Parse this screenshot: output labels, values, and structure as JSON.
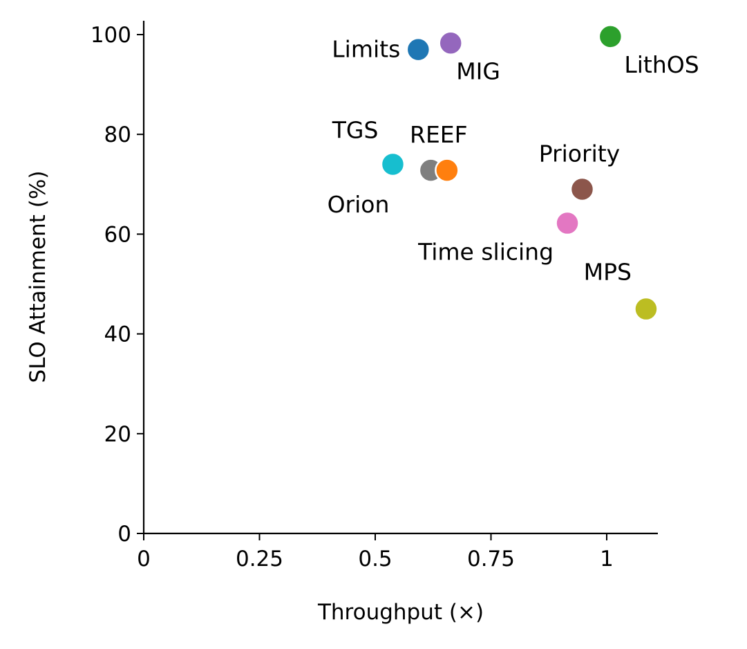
{
  "chart_data": {
    "type": "scatter",
    "title": "",
    "xlabel": "Throughput (×)",
    "ylabel": "SLO Attainment (%)",
    "xlim": [
      0,
      1.11
    ],
    "ylim": [
      0,
      103
    ],
    "grid": false,
    "legend": "none",
    "x_ticks": [
      {
        "value": 0,
        "label": "0"
      },
      {
        "value": 0.25,
        "label": "0.25"
      },
      {
        "value": 0.5,
        "label": "0.5"
      },
      {
        "value": 0.75,
        "label": "0.75"
      },
      {
        "value": 1,
        "label": "1"
      }
    ],
    "y_ticks": [
      {
        "value": 0,
        "label": "0"
      },
      {
        "value": 20,
        "label": "20"
      },
      {
        "value": 40,
        "label": "40"
      },
      {
        "value": 60,
        "label": "60"
      },
      {
        "value": 80,
        "label": "80"
      },
      {
        "value": 100,
        "label": "100"
      }
    ],
    "points": [
      {
        "name": "Orion",
        "x": 0.62,
        "y": 72.8,
        "color": "#7f7f7f",
        "label_side": "below-left"
      },
      {
        "name": "REEF",
        "x": 0.655,
        "y": 72.8,
        "color": "#ff7f0e",
        "label_side": "above"
      },
      {
        "name": "TGS",
        "x": 0.538,
        "y": 74.0,
        "color": "#17becf",
        "label_side": "above-left"
      },
      {
        "name": "Limits",
        "x": 0.593,
        "y": 97.0,
        "color": "#1f77b4",
        "label_side": "left"
      },
      {
        "name": "MIG",
        "x": 0.663,
        "y": 98.3,
        "color": "#9467bd",
        "label_side": "below-right"
      },
      {
        "name": "LithOS",
        "x": 1.008,
        "y": 99.6,
        "color": "#2ca02c",
        "label_side": "below-right"
      },
      {
        "name": "Priority",
        "x": 0.947,
        "y": 69.0,
        "color": "#8c564b",
        "label_side": "above"
      },
      {
        "name": "Time slicing",
        "x": 0.915,
        "y": 62.2,
        "color": "#e377c2",
        "label_side": "below-left"
      },
      {
        "name": "MPS",
        "x": 1.085,
        "y": 45.0,
        "color": "#bcbd22",
        "label_side": "above-left"
      }
    ]
  }
}
